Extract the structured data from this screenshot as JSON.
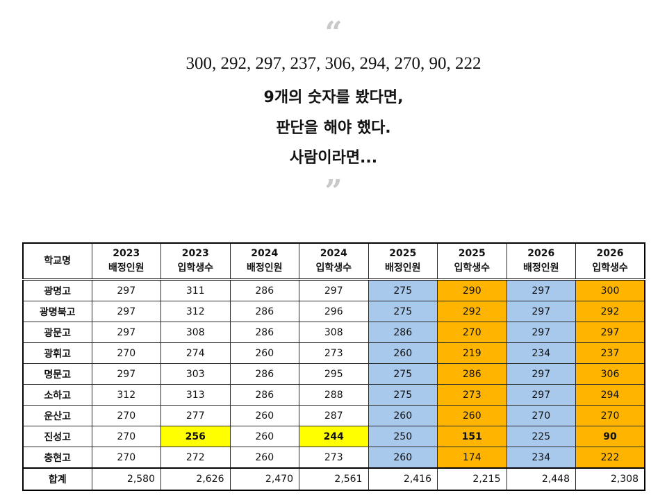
{
  "quote": {
    "open_mark": "“",
    "close_mark": "”",
    "line1": "300, 292, 297, 237, 306, 294, 270, 90, 222",
    "line2": "9개의 숫자를 봤다면,",
    "line3": "판단을 해야 했다.",
    "line4": "사람이라면..."
  },
  "table": {
    "headers": [
      {
        "top": "학교명",
        "bottom": ""
      },
      {
        "top": "2023",
        "bottom": "배정인원"
      },
      {
        "top": "2023",
        "bottom": "입학생수"
      },
      {
        "top": "2024",
        "bottom": "배정인원"
      },
      {
        "top": "2024",
        "bottom": "입학생수"
      },
      {
        "top": "2025",
        "bottom": "배정인원"
      },
      {
        "top": "2025",
        "bottom": "입학생수"
      },
      {
        "top": "2026",
        "bottom": "배정인원"
      },
      {
        "top": "2026",
        "bottom": "입학생수"
      }
    ],
    "rows": [
      {
        "name": "광명고",
        "values": [
          "297",
          "311",
          "286",
          "297",
          "275",
          "290",
          "297",
          "300"
        ]
      },
      {
        "name": "광명북고",
        "values": [
          "297",
          "312",
          "286",
          "296",
          "275",
          "292",
          "297",
          "292"
        ]
      },
      {
        "name": "광문고",
        "values": [
          "297",
          "308",
          "286",
          "308",
          "286",
          "270",
          "297",
          "297"
        ]
      },
      {
        "name": "광휘고",
        "values": [
          "270",
          "274",
          "260",
          "273",
          "260",
          "219",
          "234",
          "237"
        ]
      },
      {
        "name": "명문고",
        "values": [
          "297",
          "303",
          "286",
          "295",
          "275",
          "286",
          "297",
          "306"
        ]
      },
      {
        "name": "소하고",
        "values": [
          "312",
          "313",
          "286",
          "288",
          "275",
          "273",
          "297",
          "294"
        ]
      },
      {
        "name": "운산고",
        "values": [
          "270",
          "277",
          "260",
          "287",
          "260",
          "260",
          "270",
          "270"
        ]
      },
      {
        "name": "진성고",
        "values": [
          "270",
          "256",
          "260",
          "244",
          "250",
          "151",
          "225",
          "90"
        ]
      },
      {
        "name": "충현고",
        "values": [
          "270",
          "272",
          "260",
          "273",
          "260",
          "174",
          "234",
          "222"
        ]
      }
    ],
    "total": {
      "name": "합계",
      "values": [
        "2,580",
        "2,626",
        "2,470",
        "2,561",
        "2,416",
        "2,215",
        "2,448",
        "2,308"
      ]
    },
    "highlight_colors": {
      "blue": "#a8c9ec",
      "orange": "#ffb400",
      "yellow": "#ffff00"
    }
  }
}
